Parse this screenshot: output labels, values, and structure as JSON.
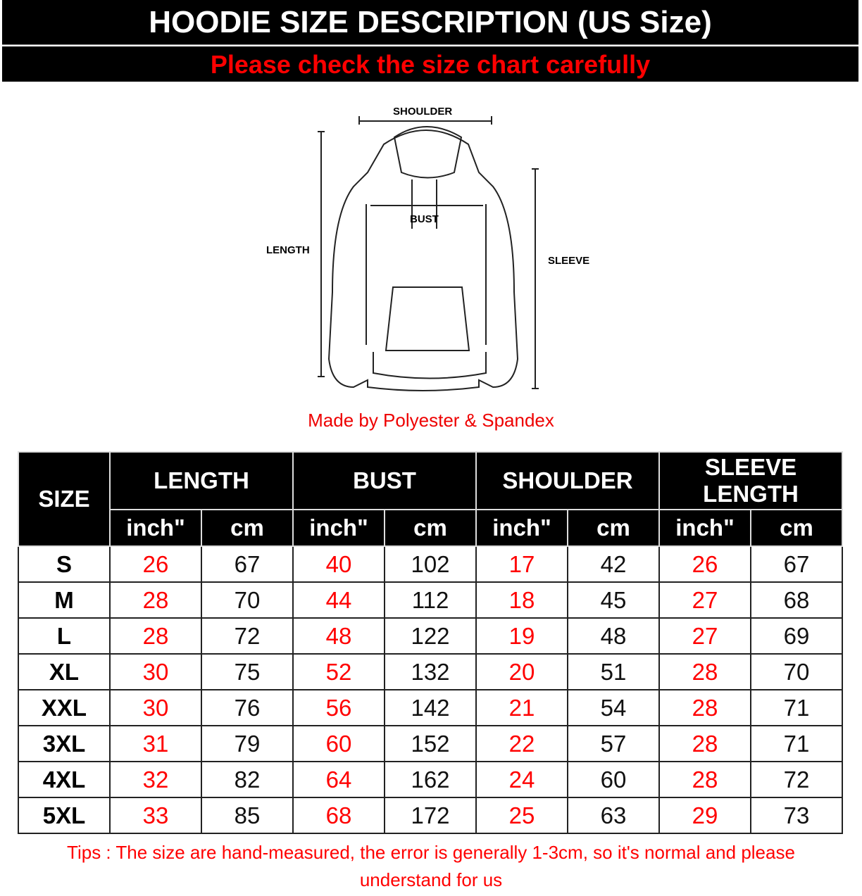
{
  "header": {
    "title": "HOODIE SIZE DESCRIPTION (US Size)",
    "subtitle": "Please check the size chart carefully"
  },
  "diagram": {
    "shoulder": "SHOULDER",
    "bust": "BUST",
    "length": "LENGTH",
    "sleeve": "SLEEVE"
  },
  "material": "Made by Polyester & Spandex",
  "table": {
    "size_header": "SIZE",
    "groups": [
      "LENGTH",
      "BUST",
      "SHOULDER",
      "SLEEVE LENGTH"
    ],
    "units": {
      "inch": "inch\"",
      "cm": "cm"
    },
    "rows": [
      {
        "size": "S",
        "v": [
          "26",
          "67",
          "40",
          "102",
          "17",
          "42",
          "26",
          "67"
        ]
      },
      {
        "size": "M",
        "v": [
          "28",
          "70",
          "44",
          "112",
          "18",
          "45",
          "27",
          "68"
        ]
      },
      {
        "size": "L",
        "v": [
          "28",
          "72",
          "48",
          "122",
          "19",
          "48",
          "27",
          "69"
        ]
      },
      {
        "size": "XL",
        "v": [
          "30",
          "75",
          "52",
          "132",
          "20",
          "51",
          "28",
          "70"
        ]
      },
      {
        "size": "XXL",
        "v": [
          "30",
          "76",
          "56",
          "142",
          "21",
          "54",
          "28",
          "71"
        ]
      },
      {
        "size": "3XL",
        "v": [
          "31",
          "79",
          "60",
          "152",
          "22",
          "57",
          "28",
          "71"
        ]
      },
      {
        "size": "4XL",
        "v": [
          "32",
          "82",
          "64",
          "162",
          "24",
          "60",
          "28",
          "72"
        ]
      },
      {
        "size": "5XL",
        "v": [
          "33",
          "85",
          "68",
          "172",
          "25",
          "63",
          "29",
          "73"
        ]
      }
    ]
  },
  "tips": "Tips : The size are hand-measured, the error is generally 1-3cm, so it's normal and please understand for us",
  "colors": {
    "inch": "#ff0000",
    "banner": "#000000",
    "subtitle": "#ff0000"
  }
}
